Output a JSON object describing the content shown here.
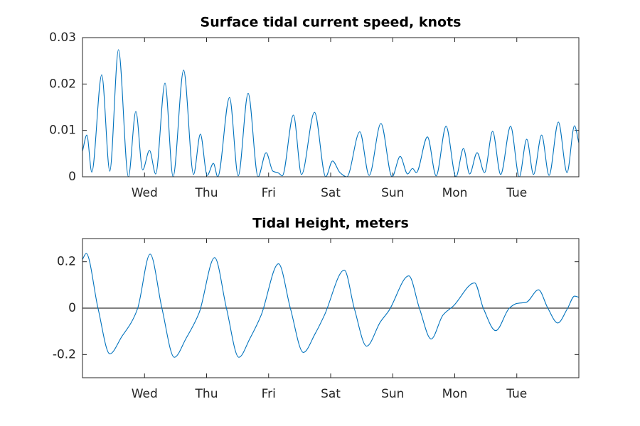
{
  "chart_data": [
    {
      "type": "line",
      "title": "Surface tidal current speed, knots",
      "x": [
        0,
        0.07,
        0.15,
        0.31,
        0.44,
        0.58,
        0.74,
        0.86,
        0.97,
        1.08,
        1.18,
        1.33,
        1.46,
        1.63,
        1.79,
        1.9,
        2.01,
        2.11,
        2.18,
        2.37,
        2.51,
        2.67,
        2.83,
        2.96,
        3.07,
        3.16,
        3.22,
        3.4,
        3.53,
        3.74,
        3.92,
        4.03,
        4.15,
        4.26,
        4.47,
        4.62,
        4.81,
        4.99,
        5.12,
        5.24,
        5.32,
        5.38,
        5.56,
        5.7,
        5.86,
        6.02,
        6.14,
        6.24,
        6.36,
        6.48,
        6.61,
        6.74,
        6.9,
        7.04,
        7.16,
        7.27,
        7.4,
        7.52,
        7.67,
        7.81,
        7.93,
        8
      ],
      "series": [
        {
          "color": "#0072bd",
          "values": [
            0.0055,
            0.009,
            0.001,
            0.022,
            0.0012,
            0.0274,
            0,
            0.0141,
            0.0015,
            0.0057,
            0.0006,
            0.0202,
            0,
            0.023,
            0.0005,
            0.0092,
            0.0003,
            0.0029,
            0,
            0.0171,
            0.0002,
            0.018,
            0,
            0.0052,
            0.0012,
            0.0008,
            0.0002,
            0.0133,
            0.0005,
            0.0139,
            0,
            0.0034,
            0.0009,
            0,
            0.0097,
            0.0003,
            0.0115,
            0,
            0.0044,
            0.0006,
            0.0018,
            0.0009,
            0.0086,
            0.0002,
            0.0109,
            0,
            0.0061,
            0.0006,
            0.0052,
            0.0009,
            0.0098,
            0.0005,
            0.0109,
            0,
            0.0081,
            0.0005,
            0.009,
            0.0003,
            0.0118,
            0.0009,
            0.011,
            0.0073
          ]
        }
      ],
      "xlim": [
        0,
        8
      ],
      "xticks": [
        {
          "value": 1,
          "label": "Wed"
        },
        {
          "value": 2,
          "label": "Thu"
        },
        {
          "value": 3,
          "label": "Fri"
        },
        {
          "value": 4,
          "label": "Sat"
        },
        {
          "value": 5,
          "label": "Sun"
        },
        {
          "value": 6,
          "label": "Mon"
        },
        {
          "value": 7,
          "label": "Tue"
        }
      ],
      "ylim": [
        0,
        0.03
      ],
      "yticks": [
        0,
        0.01,
        0.02,
        0.03
      ]
    },
    {
      "type": "line",
      "title": "Tidal Height, meters",
      "x": [
        0,
        0.06,
        0.25,
        0.44,
        0.64,
        0.79,
        0.89,
        1.09,
        1.28,
        1.48,
        1.67,
        1.88,
        2.13,
        2.32,
        2.52,
        2.7,
        2.88,
        3.16,
        3.35,
        3.56,
        3.75,
        3.9,
        4.22,
        4.38,
        4.58,
        4.8,
        4.94,
        5.26,
        5.43,
        5.62,
        5.81,
        5.98,
        6.32,
        6.46,
        6.66,
        6.88,
        7.0,
        7.15,
        7.35,
        7.5,
        7.66,
        7.82,
        7.93,
        8
      ],
      "series": [
        {
          "color": "#0072bd",
          "values": [
            0.21,
            0.236,
            0,
            -0.197,
            -0.12,
            -0.06,
            0,
            0.233,
            0,
            -0.212,
            -0.13,
            -0.02,
            0.218,
            0,
            -0.212,
            -0.13,
            -0.03,
            0.191,
            0,
            -0.191,
            -0.11,
            -0.03,
            0.164,
            0,
            -0.164,
            -0.06,
            -0.01,
            0.139,
            0,
            -0.133,
            -0.03,
            0.01,
            0.109,
            0,
            -0.097,
            0,
            0.02,
            0.025,
            0.079,
            0,
            -0.064,
            0,
            0.052,
            0.047
          ]
        }
      ],
      "xlim": [
        0,
        8
      ],
      "xticks": [
        {
          "value": 1,
          "label": "Wed"
        },
        {
          "value": 2,
          "label": "Thu"
        },
        {
          "value": 3,
          "label": "Fri"
        },
        {
          "value": 4,
          "label": "Sat"
        },
        {
          "value": 5,
          "label": "Sun"
        },
        {
          "value": 6,
          "label": "Mon"
        },
        {
          "value": 7,
          "label": "Tue"
        }
      ],
      "ylim": [
        -0.3,
        0.3
      ],
      "yticks": [
        -0.2,
        0,
        0.2
      ]
    }
  ]
}
